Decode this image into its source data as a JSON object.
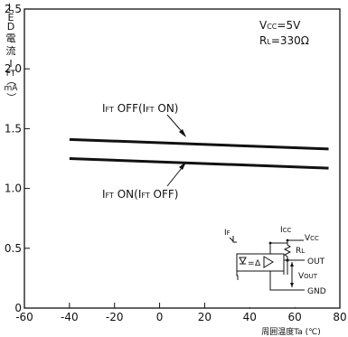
{
  "chart_data": {
    "type": "line",
    "ylabel_chars": [
      "L",
      "E",
      "D",
      "電",
      "流",
      "I",
      "FT",
      "（",
      "mA",
      "）"
    ],
    "xlabel": "周囲温度Ta (℃)",
    "xlim": [
      -60,
      80
    ],
    "ylim": [
      0,
      2.5
    ],
    "xticks": [
      -60,
      -40,
      -20,
      0,
      20,
      40,
      60,
      80
    ],
    "yticks": [
      0,
      0.5,
      1.0,
      1.5,
      2.0,
      2.5
    ],
    "xtick_labels": [
      "-60",
      "-40",
      "-20",
      "0",
      "20",
      "40",
      "60",
      "80"
    ],
    "ytick_labels": [
      "0",
      "0.5",
      "1.0",
      "1.5",
      "2.0",
      "2.5"
    ],
    "conditions": {
      "vcc": {
        "main": "V",
        "sub": "CC",
        "rest": "=5V"
      },
      "rl": {
        "main": "R",
        "sub": "L",
        "rest": "=330Ω"
      }
    },
    "series": [
      {
        "x": [
          -40,
          75
        ],
        "y": [
          1.41,
          1.33
        ]
      },
      {
        "x": [
          -40,
          75
        ],
        "y": [
          1.25,
          1.17
        ]
      }
    ],
    "annotations": [
      {
        "parts": [
          {
            "t": "I"
          },
          {
            "t": "FT",
            "sub": true
          },
          {
            "t": " OFF(I"
          },
          {
            "t": "FT",
            "sub": true
          },
          {
            "t": " ON)"
          }
        ]
      },
      {
        "parts": [
          {
            "t": "I"
          },
          {
            "t": "FT",
            "sub": true
          },
          {
            "t": " ON(I"
          },
          {
            "t": "FT",
            "sub": true
          },
          {
            "t": " OFF)"
          }
        ]
      }
    ],
    "inset": {
      "if_label": "I",
      "if_sub": "F",
      "icc_label": "I",
      "icc_sub": "CC",
      "vcc_label": "V",
      "vcc_sub": "CC",
      "rl_label": "R",
      "rl_sub": "L",
      "vout_label": "V",
      "vout_sub": "OUT",
      "out_label": "OUT",
      "gnd_label": "GND"
    }
  }
}
